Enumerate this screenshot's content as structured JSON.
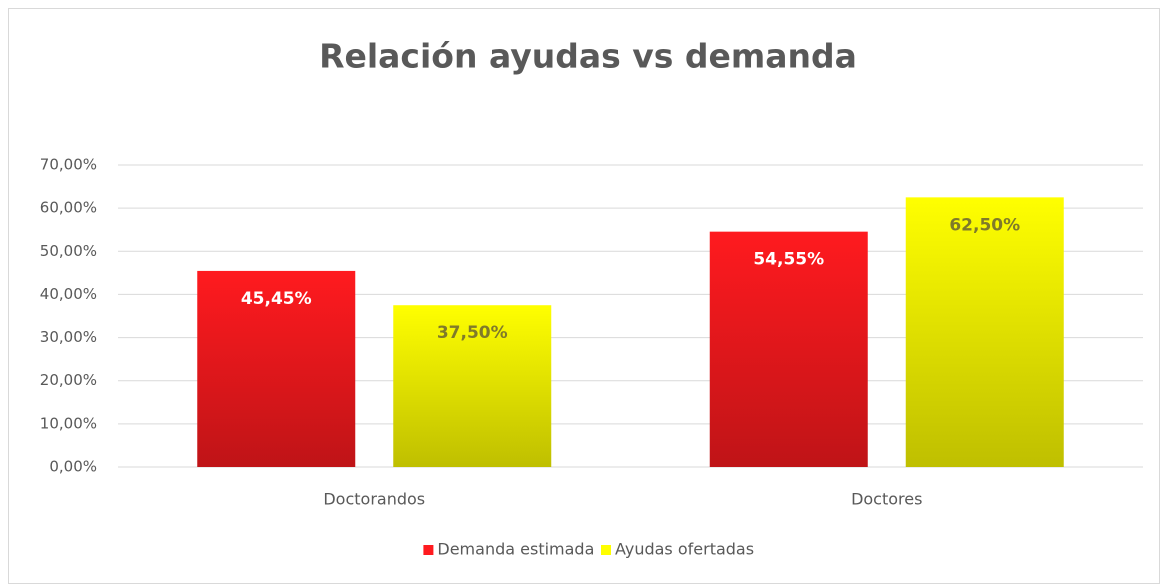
{
  "chart_data": {
    "type": "bar",
    "title": "Relación ayudas vs demanda",
    "categories": [
      "Doctorandos",
      "Doctores"
    ],
    "series": [
      {
        "name": "Demanda estimada",
        "color": "#ff1a1f",
        "values": [
          45.45,
          54.55
        ],
        "value_labels": [
          "45,45%",
          "54,55%"
        ]
      },
      {
        "name": "Ayudas ofertadas",
        "color": "#ffff00",
        "values": [
          37.5,
          62.5
        ],
        "value_labels": [
          "37,50%",
          "62,50%"
        ]
      }
    ],
    "ylim": [
      0,
      70
    ],
    "yticks": [
      {
        "value": 0,
        "label": "0,00%"
      },
      {
        "value": 10,
        "label": "10,00%"
      },
      {
        "value": 20,
        "label": "20,00%"
      },
      {
        "value": 30,
        "label": "30,00%"
      },
      {
        "value": 40,
        "label": "40,00%"
      },
      {
        "value": 50,
        "label": "50,00%"
      },
      {
        "value": 60,
        "label": "60,00%"
      },
      {
        "value": 70,
        "label": "70,00%"
      }
    ],
    "grid": true,
    "legend": "bottom"
  }
}
